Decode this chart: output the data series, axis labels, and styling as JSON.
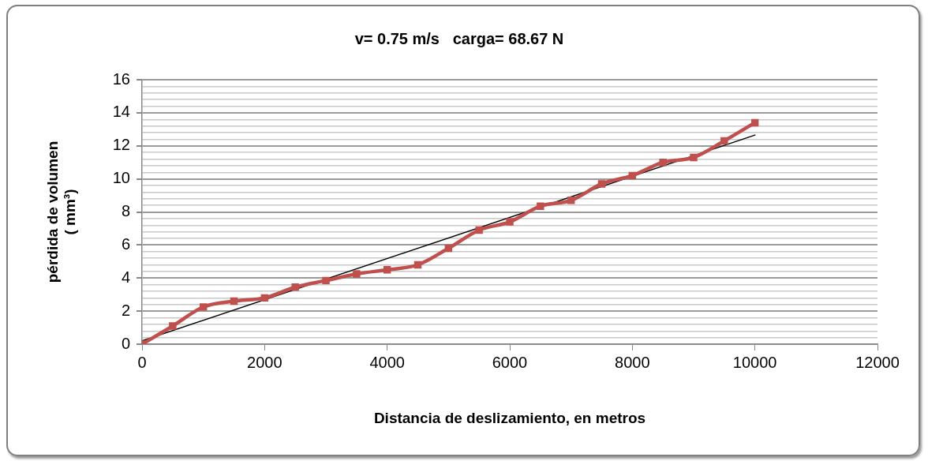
{
  "chart_data": {
    "type": "line",
    "title": "v= 0.75 m/s   carga= 68.67 N",
    "xlabel": "Distancia de deslizamiento, en metros",
    "ylabel": "pérdida de volumen\n( mm³)",
    "x": [
      0,
      500,
      1000,
      1500,
      2000,
      2500,
      3000,
      3500,
      4000,
      4500,
      5000,
      5500,
      6000,
      6500,
      7000,
      7500,
      8000,
      8500,
      9000,
      9500,
      10000
    ],
    "series": [
      {
        "color": "#c0504d",
        "values": [
          0,
          1.1,
          2.25,
          2.6,
          2.8,
          3.45,
          3.85,
          4.25,
          4.5,
          4.8,
          5.8,
          6.9,
          7.4,
          8.35,
          8.7,
          9.7,
          10.2,
          11.0,
          11.3,
          12.3,
          13.4
        ],
        "marker": "square"
      },
      {
        "type": "line",
        "color": "#000000",
        "x": [
          0,
          10000
        ],
        "values": [
          0.2,
          12.65
        ],
        "marker": "none"
      }
    ],
    "xlim": [
      0,
      12000
    ],
    "xticks": [
      0,
      2000,
      4000,
      6000,
      8000,
      10000,
      12000
    ],
    "ylim": [
      0,
      16
    ],
    "yticks": [
      0,
      {
        "value": 0.4,
        "label": null
      },
      {
        "value": 0.8,
        "label": null
      },
      {
        "value": 1.2,
        "label": null
      },
      {
        "value": 1.6,
        "label": null
      },
      2,
      {
        "value": 2.4,
        "label": null
      },
      {
        "value": 2.8,
        "label": null
      },
      {
        "value": 3.2,
        "label": null
      },
      {
        "value": 3.6,
        "label": null
      },
      4,
      {
        "value": 4.4,
        "label": null
      },
      {
        "value": 4.8,
        "label": null
      },
      {
        "value": 5.2,
        "label": null
      },
      {
        "value": 5.6,
        "label": null
      },
      6,
      {
        "value": 6.4,
        "label": null
      },
      {
        "value": 6.8,
        "label": null
      },
      {
        "value": 7.2,
        "label": null
      },
      {
        "value": 7.6,
        "label": null
      },
      8,
      {
        "value": 8.4,
        "label": null
      },
      {
        "value": 8.8,
        "label": null
      },
      {
        "value": 9.2,
        "label": null
      },
      {
        "value": 9.6,
        "label": null
      },
      10,
      {
        "value": 10.4,
        "label": null
      },
      {
        "value": 10.8,
        "label": null
      },
      {
        "value": 11.2,
        "label": null
      },
      {
        "value": 11.6,
        "label": null
      },
      12,
      {
        "value": 12.4,
        "label": null
      },
      {
        "value": 12.8,
        "label": null
      },
      {
        "value": 13.2,
        "label": null
      },
      {
        "value": 13.6,
        "label": null
      },
      14,
      {
        "value": 14.4,
        "label": null
      },
      {
        "value": 14.8,
        "label": null
      },
      {
        "value": 15.2,
        "label": null
      },
      {
        "value": 15.6,
        "label": null
      },
      16
    ],
    "grid": "y",
    "legend": false,
    "line_style": "solid"
  }
}
